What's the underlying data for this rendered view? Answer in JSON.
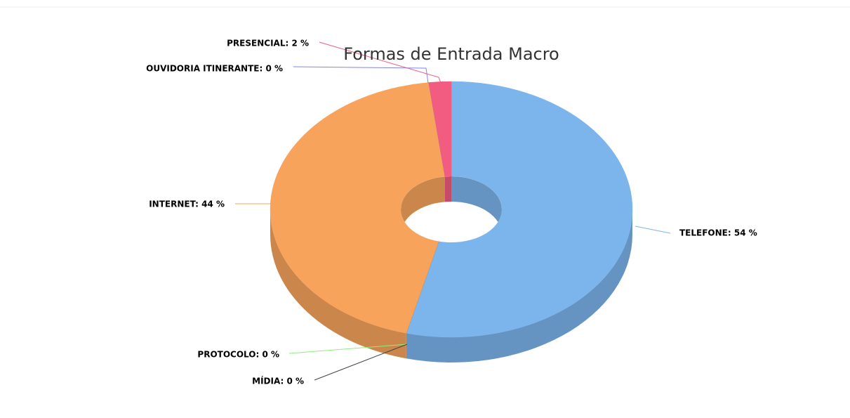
{
  "chart_data": {
    "type": "pie",
    "title": "Formas de Entrada Macro",
    "labels": [
      "TELEFONE: 54 %",
      "PROTOCOLO: 0 %",
      "MÍDIA: 0 %",
      "INTERNET: 44 %",
      "OUVIDORIA ITINERANTE: 0 %",
      "PRESENCIAL: 2 %"
    ],
    "values": [
      54,
      0,
      0,
      44,
      0,
      2
    ],
    "colors": [
      "#7cb5ec",
      "#90ed7d",
      "#434348",
      "#f7a35c",
      "#8085e9",
      "#f15c80"
    ],
    "donut": true,
    "3d": true
  }
}
